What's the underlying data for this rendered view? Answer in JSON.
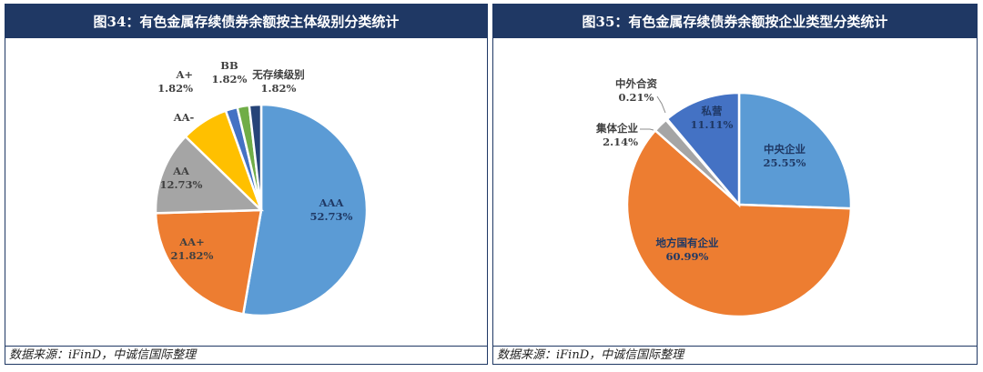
{
  "colors": {
    "header": "#1f3864",
    "blue": "#5b9bd5",
    "orange": "#ed7d31",
    "gray": "#a5a5a5",
    "gold": "#ffc000",
    "darkblue": "#4472c4",
    "green": "#70ad47",
    "navy": "#264478"
  },
  "chart_data": [
    {
      "type": "pie",
      "title": "图34：有色金属存续债券余额按主体级别分类统计",
      "source": "数据来源：iFinD，中诚信国际整理",
      "slices": [
        {
          "label": "AAA",
          "value": 52.73,
          "display": "52.73%",
          "color": "#5b9bd5"
        },
        {
          "label": "AA+",
          "value": 21.82,
          "display": "21.82%",
          "color": "#ed7d31"
        },
        {
          "label": "AA",
          "value": 12.73,
          "display": "12.73%",
          "color": "#a5a5a5"
        },
        {
          "label": "AA-",
          "value": 7.27,
          "display": "",
          "color": "#ffc000"
        },
        {
          "label": "A+",
          "value": 1.82,
          "display": "1.82%",
          "color": "#4472c4"
        },
        {
          "label": "BB",
          "value": 1.82,
          "display": "1.82%",
          "color": "#70ad47"
        },
        {
          "label": "无存续级别",
          "value": 1.82,
          "display": "1.82%",
          "color": "#264478"
        }
      ]
    },
    {
      "type": "pie",
      "title": "图35：有色金属存续债券余额按企业类型分类统计",
      "source": "数据来源：iFinD，中诚信国际整理",
      "slices": [
        {
          "label": "中央企业",
          "value": 25.55,
          "display": "25.55%",
          "color": "#5b9bd5"
        },
        {
          "label": "地方国有企业",
          "value": 60.99,
          "display": "60.99%",
          "color": "#ed7d31"
        },
        {
          "label": "集体企业",
          "value": 2.14,
          "display": "2.14%",
          "color": "#a5a5a5"
        },
        {
          "label": "中外合资",
          "value": 0.21,
          "display": "0.21%",
          "color": "#ffc000"
        },
        {
          "label": "私营",
          "value": 11.11,
          "display": "11.11%",
          "color": "#4472c4"
        }
      ]
    }
  ]
}
